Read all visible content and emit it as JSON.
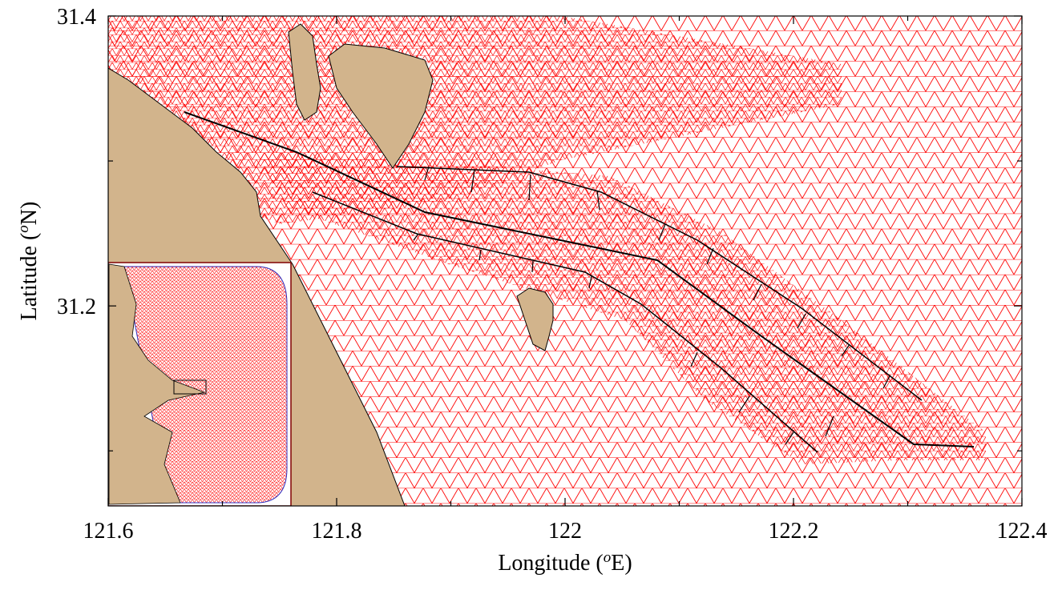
{
  "chart_data": {
    "type": "mesh",
    "x_label": {
      "text": "Longitude (",
      "sup": "o",
      "tail": "E)"
    },
    "y_label": {
      "text": "Latitude (",
      "sup": "o",
      "tail": "N)"
    },
    "xlim": [
      121.6,
      122.4
    ],
    "xticks": [
      121.6,
      121.8,
      122,
      122.2,
      122.4
    ],
    "ylim": [
      31.062,
      31.4
    ],
    "yticks": [
      31.2,
      31.4
    ]
  }
}
